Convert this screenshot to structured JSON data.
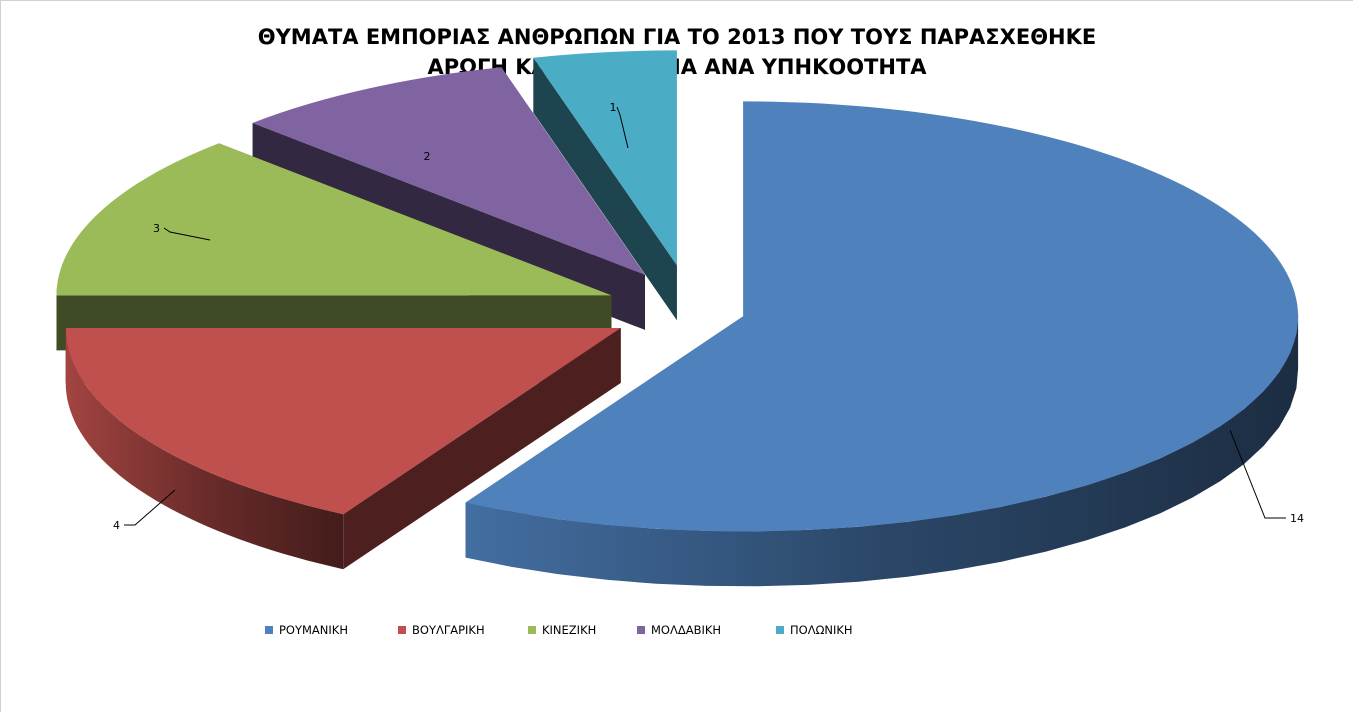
{
  "chart_data": {
    "type": "pie",
    "title_lines": [
      "ΘΥΜΑΤΑ ΕΜΠΟΡΙΑΣ ΑΝΘΡΩΠΩΝ ΓΙΑ ΤΟ 2013 ΠΟΥ ΤΟΥΣ ΠΑΡΑΣΧΕΘΗΚΕ",
      "ΑΡΩΓΗ ΚΑΙ ΠΡΟΣΤΑΣΙΑ ΑΝΑ ΥΠΗΚΟΟΤΗΤΑ"
    ],
    "style": "3d-exploded",
    "legend_position": "bottom",
    "slices": [
      {
        "label": "ΡΟΥΜΑΝΙΚΗ",
        "value": 14,
        "color": "#4F81BD"
      },
      {
        "label": "ΒΟΥΛΓΑΡΙΚΗ",
        "value": 4,
        "color": "#C0504D"
      },
      {
        "label": "ΚΙΝΕΖΙΚΗ",
        "value": 3,
        "color": "#9BBB59"
      },
      {
        "label": "ΜΟΛΔΑΒΙΚΗ",
        "value": 2,
        "color": "#8064A2"
      },
      {
        "label": "ΠΟΛΩΝΙΚΗ",
        "value": 1,
        "color": "#4BACC6"
      }
    ]
  }
}
